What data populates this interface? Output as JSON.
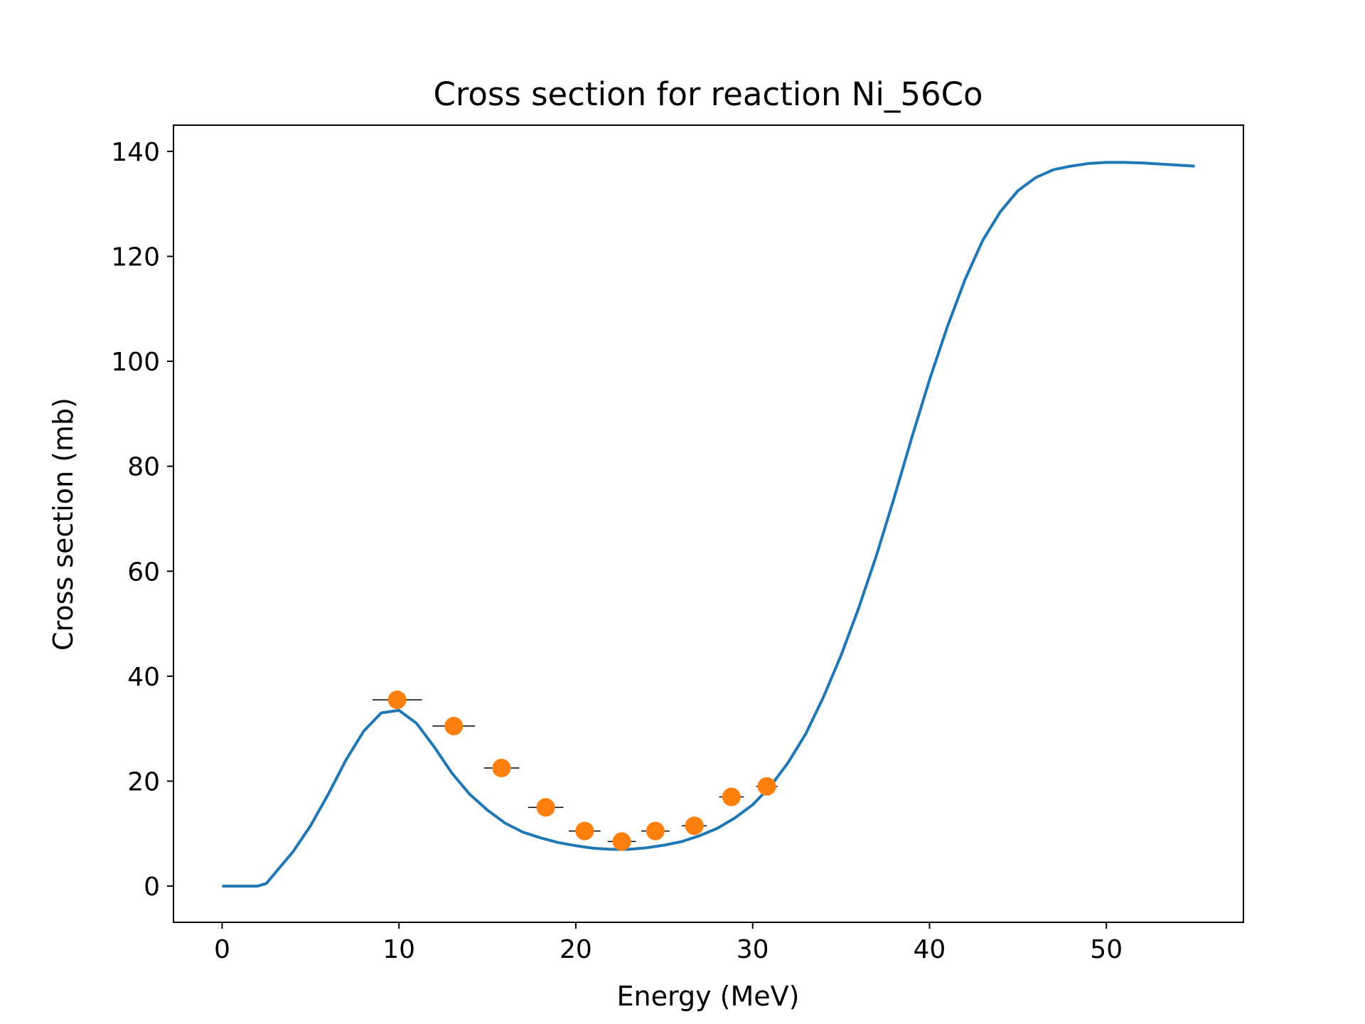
{
  "chart_data": {
    "type": "line",
    "title": "Cross section for reaction Ni_56Co",
    "xlabel": "Energy (MeV)",
    "ylabel": "Cross section (mb)",
    "xlim": [
      -2.75,
      57.75
    ],
    "ylim": [
      -6.9,
      145
    ],
    "xticks": [
      0,
      10,
      20,
      30,
      40,
      50
    ],
    "yticks": [
      0,
      20,
      40,
      60,
      80,
      100,
      120,
      140
    ],
    "grid": false,
    "legend": "none",
    "series": [
      {
        "kind": "line",
        "color": "#1f77b4",
        "x": [
          0,
          1,
          2,
          2.5,
          3,
          4,
          5,
          6,
          7,
          8,
          9,
          10,
          11,
          12,
          13,
          14,
          15,
          16,
          17,
          18,
          19,
          20,
          21,
          22,
          23,
          24,
          25,
          26,
          27,
          28,
          29,
          30,
          31,
          32,
          33,
          34,
          35,
          36,
          37,
          38,
          39,
          40,
          41,
          42,
          43,
          44,
          45,
          46,
          47,
          48,
          49,
          50,
          51,
          52,
          53,
          54,
          55
        ],
        "y": [
          0,
          0,
          0,
          0.5,
          2.5,
          6.5,
          11.5,
          17.5,
          24,
          29.5,
          33,
          33.5,
          31,
          26.5,
          21.5,
          17.5,
          14.5,
          12,
          10.3,
          9.2,
          8.3,
          7.7,
          7.2,
          7,
          7,
          7.3,
          7.8,
          8.5,
          9.6,
          11,
          13,
          15.5,
          19,
          23.5,
          29,
          36,
          44,
          53,
          63,
          74,
          85.5,
          96.5,
          106.5,
          115.5,
          123,
          128.5,
          132.5,
          135,
          136.5,
          137.2,
          137.7,
          137.9,
          137.9,
          137.8,
          137.6,
          137.4,
          137.2
        ]
      },
      {
        "kind": "scatter",
        "color": "#ff7f0e",
        "errorbar_color": "#000000",
        "x": [
          9.9,
          13.1,
          15.8,
          18.3,
          20.5,
          22.6,
          24.5,
          26.7,
          28.8,
          30.8
        ],
        "y": [
          35.5,
          30.5,
          22.5,
          15,
          10.5,
          8.5,
          10.5,
          11.5,
          17,
          19
        ],
        "xerr": [
          1.4,
          1.2,
          1.0,
          1.0,
          0.9,
          0.8,
          0.8,
          0.7,
          0.7,
          0.6
        ]
      }
    ]
  }
}
